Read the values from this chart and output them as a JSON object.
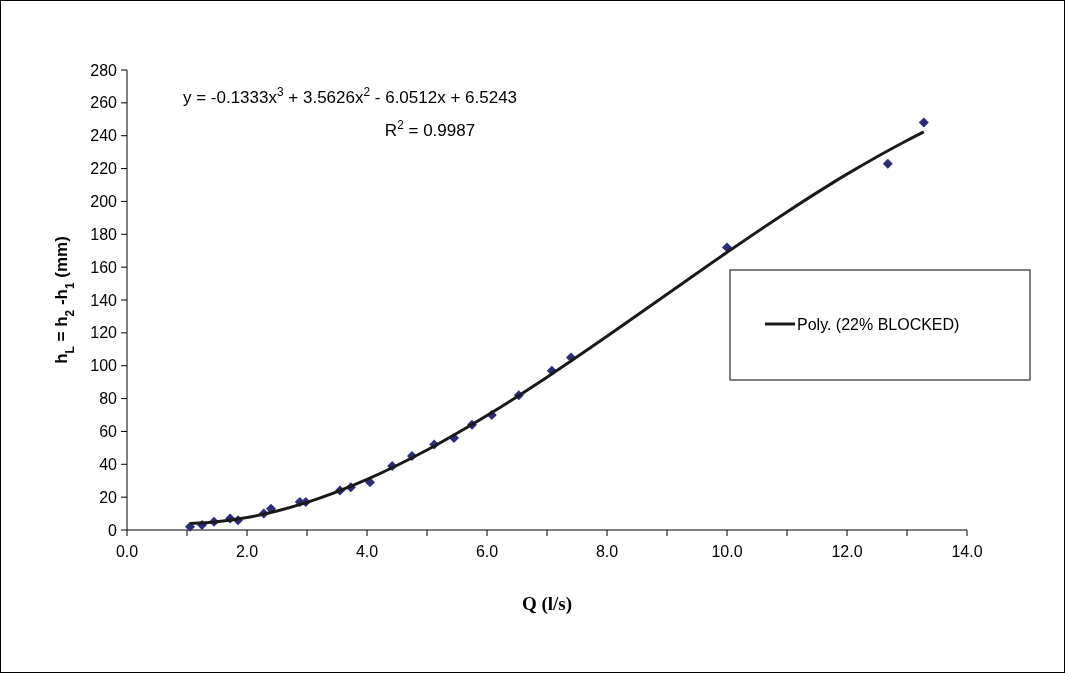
{
  "chart_data": {
    "type": "scatter",
    "xlabel": "Q (l/s)",
    "ylabel": "h$_{L}$ = h$_{2}$ -h$_{1}$ (mm)",
    "annotations": [
      "y = -0.1333x$^{3}$ + 3.5626x$^{2}$ - 6.0512x + 6.5243",
      "R$^{2}$ = 0.9987"
    ],
    "xlim": [
      0,
      14
    ],
    "ylim": [
      0,
      280
    ],
    "xticks": [
      {
        "value": 0,
        "label": "0.0"
      },
      {
        "value": 1,
        "label": null
      },
      {
        "value": 2,
        "label": "2.0"
      },
      {
        "value": 3,
        "label": null
      },
      {
        "value": 4,
        "label": "4.0"
      },
      {
        "value": 5,
        "label": null
      },
      {
        "value": 6,
        "label": "6.0"
      },
      {
        "value": 7,
        "label": null
      },
      {
        "value": 8,
        "label": "8.0"
      },
      {
        "value": 9,
        "label": null
      },
      {
        "value": 10,
        "label": "10.0"
      },
      {
        "value": 11,
        "label": null
      },
      {
        "value": 12,
        "label": "12.0"
      },
      {
        "value": 13,
        "label": null
      },
      {
        "value": 14,
        "label": "14.0"
      }
    ],
    "yticks": [
      0,
      20,
      40,
      60,
      80,
      100,
      120,
      140,
      160,
      180,
      200,
      220,
      240,
      260,
      280
    ],
    "grid": false,
    "legend": "right",
    "marker": "diamond",
    "series": [
      {
        "color": "#2b2d7c",
        "x": [
          1.05,
          1.25,
          1.45,
          1.72,
          1.85,
          2.28,
          2.4,
          2.88,
          2.98,
          3.55,
          3.73,
          4.05,
          4.42,
          4.75,
          5.12,
          5.45,
          5.75,
          6.08,
          6.53,
          7.08,
          7.4,
          10.0,
          12.68,
          13.28
        ],
        "values": [
          2,
          3,
          5,
          7,
          6,
          10,
          13,
          17,
          17,
          24,
          26,
          29,
          39,
          45,
          52,
          56,
          64,
          70,
          82,
          97,
          105,
          172,
          223,
          248
        ]
      },
      {
        "type": "line",
        "name": "Poly. (22% BLOCKED)",
        "color": "#1a1a1a",
        "line_style": "solid",
        "marker": "none",
        "x": [
          1.05,
          1.5,
          2,
          2.5,
          3,
          4,
          5,
          6,
          7,
          8,
          9,
          10,
          11,
          12,
          13,
          13.28
        ],
        "values": [
          3.9,
          5.0,
          7.6,
          11.6,
          16.8,
          30.8,
          48.7,
          69.7,
          93.0,
          117.9,
          143.5,
          169.0,
          193.6,
          216.6,
          237.1,
          242.3
        ]
      }
    ]
  }
}
